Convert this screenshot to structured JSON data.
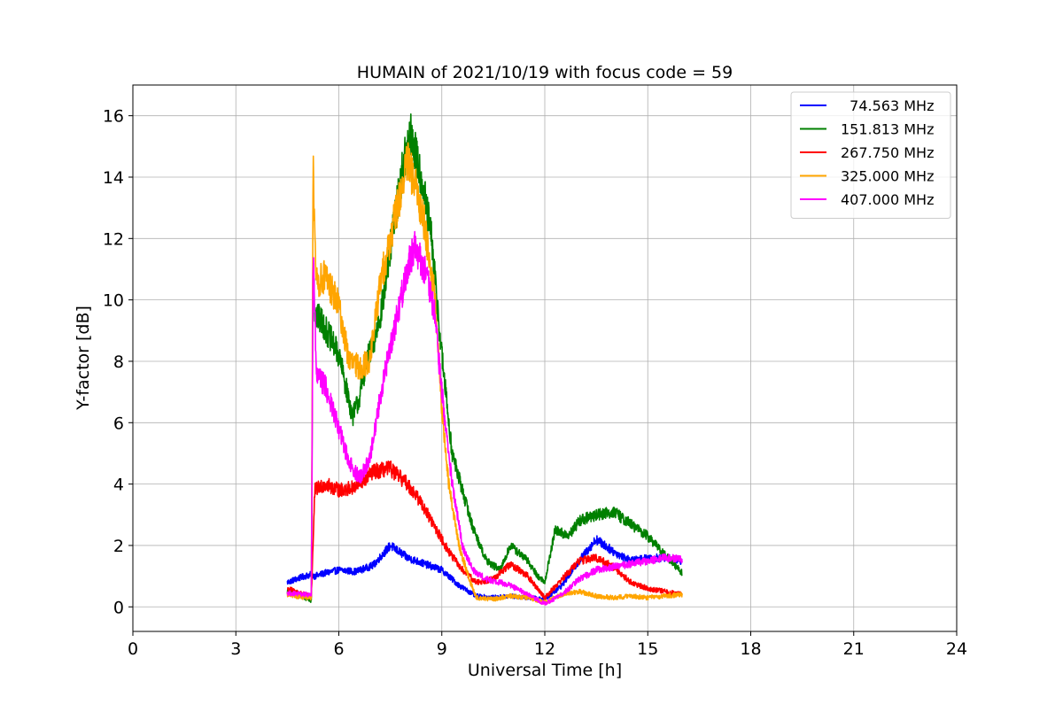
{
  "chart_data": {
    "type": "line",
    "title": "HUMAIN of 2021/10/19 with focus code = 59",
    "xlabel": "Universal Time [h]",
    "ylabel": "Y-factor [dB]",
    "xlim": [
      0,
      24
    ],
    "ylim": [
      -0.8,
      17
    ],
    "xticks": [
      0,
      3,
      6,
      9,
      12,
      15,
      18,
      21,
      24
    ],
    "yticks": [
      0,
      2,
      4,
      6,
      8,
      10,
      12,
      14,
      16
    ],
    "grid": true,
    "legend_position": "top-right",
    "series": [
      {
        "name": "  74.563 MHz",
        "color": "#0000ff",
        "x": [
          4.5,
          5.0,
          5.2,
          5.3,
          5.6,
          6.0,
          6.5,
          7.0,
          7.5,
          8.0,
          8.5,
          9.0,
          9.5,
          10.0,
          10.5,
          11.0,
          11.5,
          12.0,
          12.5,
          13.0,
          13.5,
          14.0,
          14.5,
          15.0,
          15.5,
          16.0
        ],
        "values": [
          0.8,
          1.0,
          1.05,
          1.0,
          1.1,
          1.2,
          1.15,
          1.35,
          2.0,
          1.6,
          1.4,
          1.2,
          0.7,
          0.35,
          0.3,
          0.35,
          0.3,
          0.25,
          0.7,
          1.5,
          2.2,
          1.8,
          1.5,
          1.6,
          1.6,
          1.5
        ]
      },
      {
        "name": "151.813 MHz",
        "color": "#008000",
        "x": [
          4.5,
          5.0,
          5.2,
          5.25,
          5.3,
          5.5,
          6.0,
          6.4,
          6.6,
          6.8,
          7.0,
          7.3,
          7.6,
          7.9,
          8.1,
          8.4,
          8.7,
          9.0,
          9.3,
          9.6,
          9.9,
          10.3,
          10.7,
          11.0,
          11.5,
          11.8,
          12.0,
          12.3,
          12.7,
          13.0,
          13.5,
          14.0,
          14.5,
          15.0,
          15.5,
          16.0
        ],
        "values": [
          0.5,
          0.3,
          0.2,
          12.0,
          9.5,
          9.3,
          8.2,
          6.2,
          6.8,
          8.0,
          8.5,
          10.0,
          12.5,
          14.5,
          15.4,
          14.0,
          12.0,
          8.2,
          5.0,
          3.8,
          2.6,
          1.5,
          1.2,
          2.0,
          1.5,
          1.0,
          0.8,
          2.5,
          2.3,
          2.8,
          3.0,
          3.1,
          2.7,
          2.3,
          1.7,
          1.1
        ]
      },
      {
        "name": "267.750 MHz",
        "color": "#ff0000",
        "x": [
          4.5,
          5.0,
          5.2,
          5.3,
          5.6,
          6.0,
          6.5,
          7.0,
          7.5,
          8.0,
          8.4,
          8.8,
          9.2,
          9.6,
          10.0,
          10.5,
          11.0,
          11.5,
          12.0,
          12.5,
          13.0,
          13.5,
          14.0,
          14.5,
          15.0,
          15.5,
          16.0
        ],
        "values": [
          0.6,
          0.4,
          0.35,
          3.8,
          4.0,
          3.8,
          3.9,
          4.4,
          4.5,
          4.0,
          3.4,
          2.6,
          1.8,
          1.2,
          0.8,
          0.9,
          1.4,
          1.0,
          0.3,
          0.9,
          1.5,
          1.6,
          1.3,
          0.8,
          0.6,
          0.5,
          0.4
        ]
      },
      {
        "name": "325.000 MHz",
        "color": "#ffa500",
        "x": [
          4.5,
          5.0,
          5.2,
          5.25,
          5.35,
          5.6,
          6.0,
          6.3,
          6.6,
          6.9,
          7.2,
          7.5,
          7.8,
          8.0,
          8.2,
          8.5,
          8.8,
          9.0,
          9.2,
          9.5,
          9.8,
          10.0,
          10.5,
          11.0,
          11.5,
          12.0,
          12.5,
          13.0,
          13.5,
          14.0,
          14.5,
          15.0,
          15.5,
          16.0
        ],
        "values": [
          0.4,
          0.3,
          0.3,
          14.3,
          10.5,
          10.8,
          9.8,
          8.0,
          7.8,
          8.0,
          10.5,
          12.0,
          13.5,
          14.5,
          13.8,
          12.5,
          10.0,
          6.5,
          4.0,
          2.0,
          0.9,
          0.3,
          0.25,
          0.35,
          0.3,
          0.15,
          0.4,
          0.5,
          0.35,
          0.3,
          0.35,
          0.3,
          0.35,
          0.4
        ]
      },
      {
        "name": "407.000 MHz",
        "color": "#ff00ff",
        "x": [
          4.5,
          5.0,
          5.2,
          5.25,
          5.35,
          5.6,
          6.0,
          6.3,
          6.6,
          6.9,
          7.2,
          7.5,
          7.8,
          8.0,
          8.2,
          8.5,
          8.8,
          9.0,
          9.3,
          9.6,
          9.9,
          10.3,
          10.7,
          11.0,
          11.5,
          12.0,
          12.5,
          13.0,
          13.5,
          14.0,
          14.5,
          15.0,
          15.5,
          16.0
        ],
        "values": [
          0.45,
          0.4,
          0.4,
          11.5,
          7.5,
          7.2,
          5.8,
          4.7,
          4.2,
          4.8,
          6.8,
          8.5,
          10.0,
          11.0,
          11.8,
          11.0,
          9.5,
          7.0,
          4.0,
          2.0,
          1.2,
          0.9,
          0.8,
          0.7,
          0.4,
          0.1,
          0.4,
          0.9,
          1.2,
          1.3,
          1.4,
          1.5,
          1.6,
          1.55
        ]
      }
    ]
  }
}
